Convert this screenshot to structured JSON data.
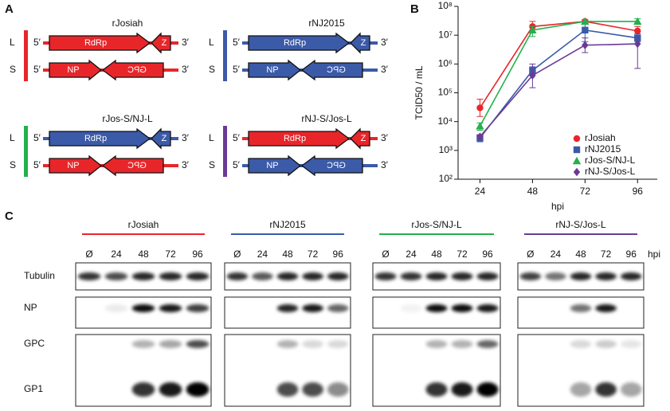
{
  "panel_a": {
    "label": "A",
    "segments": {
      "l": "L",
      "s": "S"
    },
    "five_end": "5′",
    "three_end": "3′",
    "genes": {
      "rdrp": "RdRp",
      "z": "Z",
      "np": "NP",
      "gpc": "GPC"
    },
    "constructs": [
      {
        "name": "rJosiah",
        "bar_color": "#e8262a",
        "l_color": "#e8262a",
        "s_color": "#e8262a"
      },
      {
        "name": "rNJ2015",
        "bar_color": "#3b5aa8",
        "l_color": "#3b5aa8",
        "s_color": "#3b5aa8"
      },
      {
        "name": "rJos-S/NJ-L",
        "bar_color": "#22b14c",
        "l_color": "#3b5aa8",
        "s_color": "#e8262a"
      },
      {
        "name": "rNJ-S/Jos-L",
        "bar_color": "#6b3a96",
        "l_color": "#e8262a",
        "s_color": "#3b5aa8"
      }
    ]
  },
  "chart_data": {
    "type": "line",
    "panel_label": "B",
    "x_label": "hpi",
    "y_label": "TCID50 / mL",
    "x": [
      24,
      48,
      72,
      96
    ],
    "xlim": [
      14,
      105
    ],
    "xticks": [
      24,
      48,
      72,
      96
    ],
    "log_y": true,
    "ylim": [
      100,
      100000000
    ],
    "yticks": [
      {
        "value": 100,
        "label": "10²"
      },
      {
        "value": 1000,
        "label": "10³"
      },
      {
        "value": 10000,
        "label": "10⁴"
      },
      {
        "value": 100000,
        "label": "10⁵"
      },
      {
        "value": 1000000,
        "label": "10⁶"
      },
      {
        "value": 10000000,
        "label": "10⁷"
      },
      {
        "value": 100000000,
        "label": "10⁸"
      }
    ],
    "series": [
      {
        "name": "rJosiah",
        "color": "#e8262a",
        "marker": "circle",
        "values": [
          30000,
          20000000,
          30000000,
          14000000
        ],
        "error_low": [
          15000,
          12000000,
          25000000,
          10000000
        ],
        "error_high": [
          60000,
          30000000,
          35000000,
          20000000
        ]
      },
      {
        "name": "rNJ2015",
        "color": "#3b5aa8",
        "marker": "square",
        "values": [
          2700,
          600000,
          15000000,
          8000000
        ],
        "error_low": [
          2000,
          450000,
          6000000,
          6000000
        ],
        "error_high": [
          3500,
          800000,
          25000000,
          11000000
        ]
      },
      {
        "name": "rJos-S/NJ-L",
        "color": "#22b14c",
        "marker": "triangle",
        "values": [
          7000,
          15000000,
          30000000,
          30000000
        ],
        "error_low": [
          5000,
          9000000,
          25000000,
          25000000
        ],
        "error_high": [
          9000,
          20000000,
          35000000,
          37000000
        ]
      },
      {
        "name": "rNJ-S/Jos-L",
        "color": "#6b3a96",
        "marker": "diamond",
        "values": [
          3000,
          400000,
          4500000,
          5000000
        ],
        "error_low": [
          2500,
          150000,
          2500000,
          700000
        ],
        "error_high": [
          3500,
          1000000,
          8000000,
          10000000
        ]
      }
    ]
  },
  "panel_c": {
    "label": "C",
    "lanes": [
      "Ø",
      "24",
      "48",
      "72",
      "96"
    ],
    "lane_unit": "hpi",
    "rows": [
      "Tubulin",
      "NP",
      "GPC",
      "GP1"
    ],
    "groups": [
      {
        "name": "rJosiah",
        "color": "#e8262a"
      },
      {
        "name": "rNJ2015",
        "color": "#3b5aa8"
      },
      {
        "name": "rJos-S/NJ-L",
        "color": "#22b14c"
      },
      {
        "name": "rNJ-S/Jos-L",
        "color": "#6b3a96"
      }
    ]
  }
}
